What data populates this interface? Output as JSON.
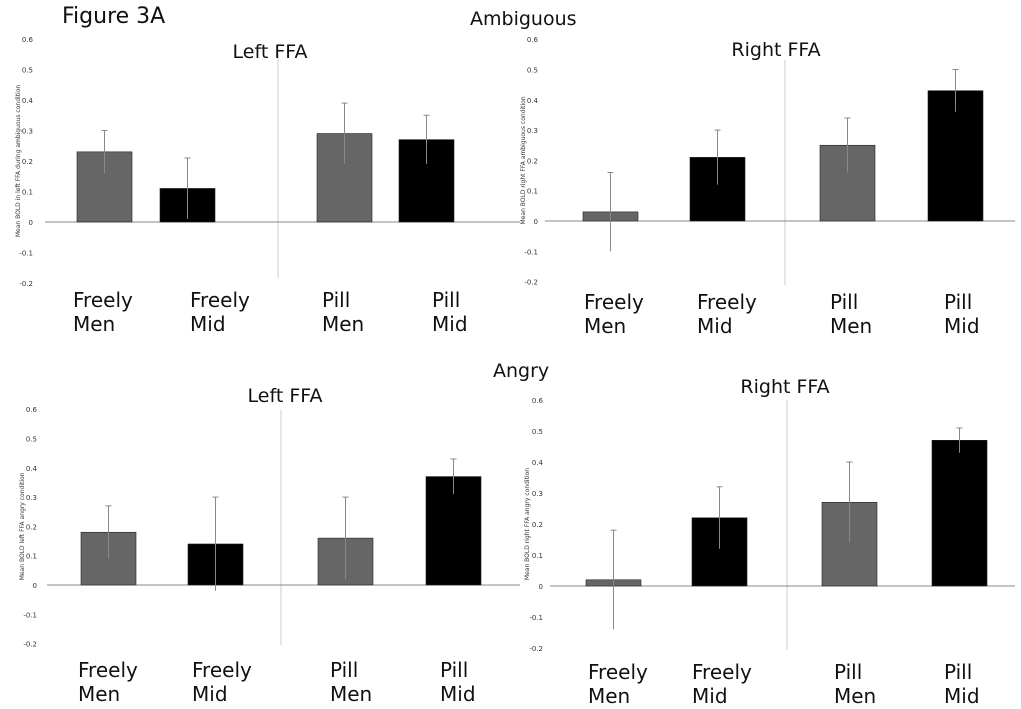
{
  "figure_label": "Figure 3A",
  "sections": [
    "Ambiguous",
    "Angry"
  ],
  "colors": {
    "gray": "#666666",
    "black": "#000000",
    "axis": "#888888"
  },
  "chart_data": [
    {
      "type": "bar",
      "section": "Ambiguous",
      "title": "Left FFA",
      "ylabel": "Mean BOLD in left FFA during ambiguous condition",
      "categories": [
        "Freely\nMen",
        "Freely\nMid",
        "Pill\nMen",
        "Pill\nMid"
      ],
      "values": [
        0.23,
        0.11,
        0.29,
        0.27
      ],
      "errors": [
        0.07,
        0.1,
        0.1,
        0.08
      ],
      "bar_colors": [
        "gray",
        "black",
        "gray",
        "black"
      ],
      "yticks": [
        "0.6",
        "0.5",
        "0.4",
        "0.3",
        "0.2",
        "0.1",
        "0",
        "-0.1",
        "-0.2"
      ],
      "ylim": [
        -0.2,
        0.6
      ]
    },
    {
      "type": "bar",
      "section": "Ambiguous",
      "title": "Right FFA",
      "ylabel": "Mean BOLD right FFA ambiguous condition",
      "categories": [
        "Freely\nMen",
        "Freely\nMid",
        "Pill\nMen",
        "Pill\nMid"
      ],
      "values": [
        0.03,
        0.21,
        0.25,
        0.43
      ],
      "errors": [
        0.13,
        0.09,
        0.09,
        0.07
      ],
      "bar_colors": [
        "gray",
        "black",
        "gray",
        "black"
      ],
      "yticks": [
        "0.6",
        "0.5",
        "0.4",
        "0.3",
        "0.2",
        "0.1",
        "0",
        "-0.1",
        "-0.2"
      ],
      "ylim": [
        -0.2,
        0.6
      ]
    },
    {
      "type": "bar",
      "section": "Angry",
      "title": "Left FFA",
      "ylabel": "Mean BOLD left FFA angry condition",
      "categories": [
        "Freely\nMen",
        "Freely\nMid",
        "Pill\nMen",
        "Pill\nMid"
      ],
      "values": [
        0.18,
        0.14,
        0.16,
        0.37
      ],
      "errors": [
        0.09,
        0.16,
        0.14,
        0.06
      ],
      "bar_colors": [
        "gray",
        "black",
        "gray",
        "black"
      ],
      "yticks": [
        "0.6",
        "0.5",
        "0.4",
        "0.3",
        "0.2",
        "0.1",
        "0",
        "-0.1",
        "-0.2"
      ],
      "ylim": [
        -0.2,
        0.6
      ]
    },
    {
      "type": "bar",
      "section": "Angry",
      "title": "Right FFA",
      "ylabel": "Mean BOLD right FFA angry condition",
      "categories": [
        "Freely\nMen",
        "Freely\nMid",
        "Pill\nMen",
        "Pill\nMid"
      ],
      "values": [
        0.02,
        0.22,
        0.27,
        0.47
      ],
      "errors": [
        0.16,
        0.1,
        0.13,
        0.04
      ],
      "bar_colors": [
        "gray",
        "black",
        "gray",
        "black"
      ],
      "yticks": [
        "0.6",
        "0.5",
        "0.4",
        "0.3",
        "0.2",
        "0.1",
        "0",
        "-0.1",
        "-0.2"
      ],
      "ylim": [
        -0.2,
        0.6
      ]
    }
  ]
}
